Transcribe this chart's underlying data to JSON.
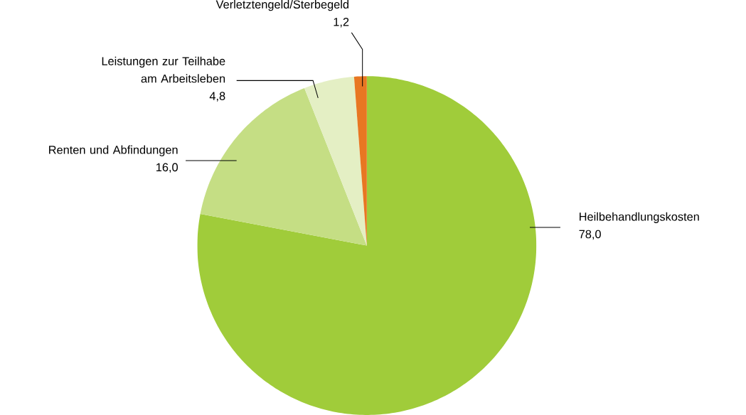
{
  "chart_data": {
    "type": "pie",
    "categories": [
      "Heilbehandlungskosten",
      "Renten und Abfindungen",
      "Leistungen zur Teilhabe am Arbeitsleben",
      "Verletztengeld/Sterbegeld"
    ],
    "values": [
      78.0,
      16.0,
      4.8,
      1.2
    ],
    "value_labels": [
      "78,0",
      "16,0",
      "4,8",
      "1,2"
    ],
    "colors": [
      "#a0cc3a",
      "#c5de84",
      "#e4efc4",
      "#e87722"
    ]
  }
}
